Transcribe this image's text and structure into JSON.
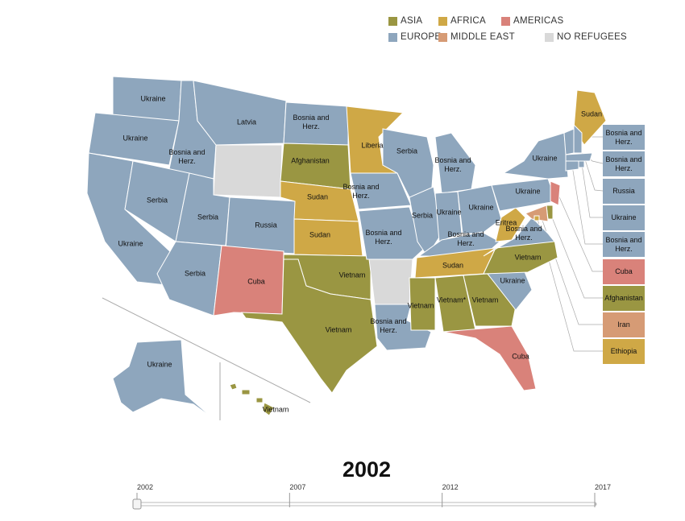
{
  "legend": [
    {
      "label": "ASIA",
      "color": "#9a9642"
    },
    {
      "label": "AFRICA",
      "color": "#cfa846"
    },
    {
      "label": "AMERICAS",
      "color": "#d9827a"
    },
    {
      "label": "EUROPE",
      "color": "#8ea6bd"
    },
    {
      "label": "MIDDLE EAST",
      "color": "#d69b75"
    },
    {
      "label": "NO REFUGEES",
      "color": "#d9d9d9"
    }
  ],
  "states": [
    {
      "label": "Ukraine",
      "group": "EUROPE"
    },
    {
      "label": "Ukraine",
      "group": "EUROPE"
    },
    {
      "label": "Ukraine",
      "group": "EUROPE"
    },
    {
      "label": "Bosnia and Herz.",
      "group": "EUROPE"
    },
    {
      "label": "Serbia",
      "group": "EUROPE"
    },
    {
      "label": "Latvia",
      "group": "EUROPE"
    },
    {
      "label": null,
      "group": "NO REFUGEES"
    },
    {
      "label": "Serbia",
      "group": "EUROPE"
    },
    {
      "label": "Russia",
      "group": "EUROPE"
    },
    {
      "label": "Serbia",
      "group": "EUROPE"
    },
    {
      "label": "Cuba",
      "group": "AMERICAS"
    },
    {
      "label": "Bosnia and Herz.",
      "group": "EUROPE"
    },
    {
      "label": "Afghanistan",
      "group": "ASIA"
    },
    {
      "label": "Sudan",
      "group": "AFRICA"
    },
    {
      "label": "Sudan",
      "group": "AFRICA"
    },
    {
      "label": "Vietnam",
      "group": "ASIA"
    },
    {
      "label": "Vietnam",
      "group": "ASIA"
    },
    {
      "label": "Liberia",
      "group": "AFRICA"
    },
    {
      "label": "Bosnia and Herz.",
      "group": "EUROPE"
    },
    {
      "label": "Bosnia and Herz.",
      "group": "EUROPE"
    },
    {
      "label": null,
      "group": "NO REFUGEES"
    },
    {
      "label": "Bosnia and Herz.",
      "group": "EUROPE"
    },
    {
      "label": "Serbia",
      "group": "EUROPE"
    },
    {
      "label": "Serbia",
      "group": "EUROPE"
    },
    {
      "label": "Bosnia and Herz.",
      "group": "EUROPE"
    },
    {
      "label": "Ukraine",
      "group": "EUROPE"
    },
    {
      "label": "Ukraine",
      "group": "EUROPE"
    },
    {
      "label": "Bosnia and Herz.",
      "group": "EUROPE"
    },
    {
      "label": "Sudan",
      "group": "AFRICA"
    },
    {
      "label": "Vietnam",
      "group": "ASIA"
    },
    {
      "label": "Vietnam*",
      "group": "ASIA"
    },
    {
      "label": "Vietnam",
      "group": "ASIA"
    },
    {
      "label": "Cuba",
      "group": "AMERICAS"
    },
    {
      "label": "Ukraine",
      "group": "EUROPE"
    },
    {
      "label": "Vietnam",
      "group": "ASIA"
    },
    {
      "label": "Bosnia and Herz.",
      "group": "EUROPE"
    },
    {
      "label": "Eritrea",
      "group": "AFRICA"
    },
    {
      "label": "Ukraine",
      "group": "EUROPE"
    },
    {
      "label": "Ukraine",
      "group": "EUROPE"
    },
    {
      "label": "Sudan",
      "group": "AFRICA"
    },
    {
      "label": "Bosnia and Herz.",
      "group": "EUROPE"
    },
    {
      "label": "Bosnia and Herz.",
      "group": "EUROPE"
    },
    {
      "label": "Russia",
      "group": "EUROPE"
    },
    {
      "label": "Ukraine",
      "group": "EUROPE"
    },
    {
      "label": "Bosnia and Herz.",
      "group": "EUROPE"
    },
    {
      "label": "Cuba",
      "group": "AMERICAS"
    },
    {
      "label": "Afghanistan",
      "group": "ASIA"
    },
    {
      "label": "Iran",
      "group": "MIDDLE EAST"
    },
    {
      "label": "Ethiopia",
      "group": "AFRICA"
    },
    {
      "label": "Ukraine",
      "group": "EUROPE"
    },
    {
      "label": "Vietnam",
      "group": "ASIA"
    }
  ],
  "timeline": {
    "year": 2002,
    "xlim": [
      2002,
      2017
    ],
    "xticks": [
      2002,
      2007,
      2012,
      2017
    ]
  }
}
